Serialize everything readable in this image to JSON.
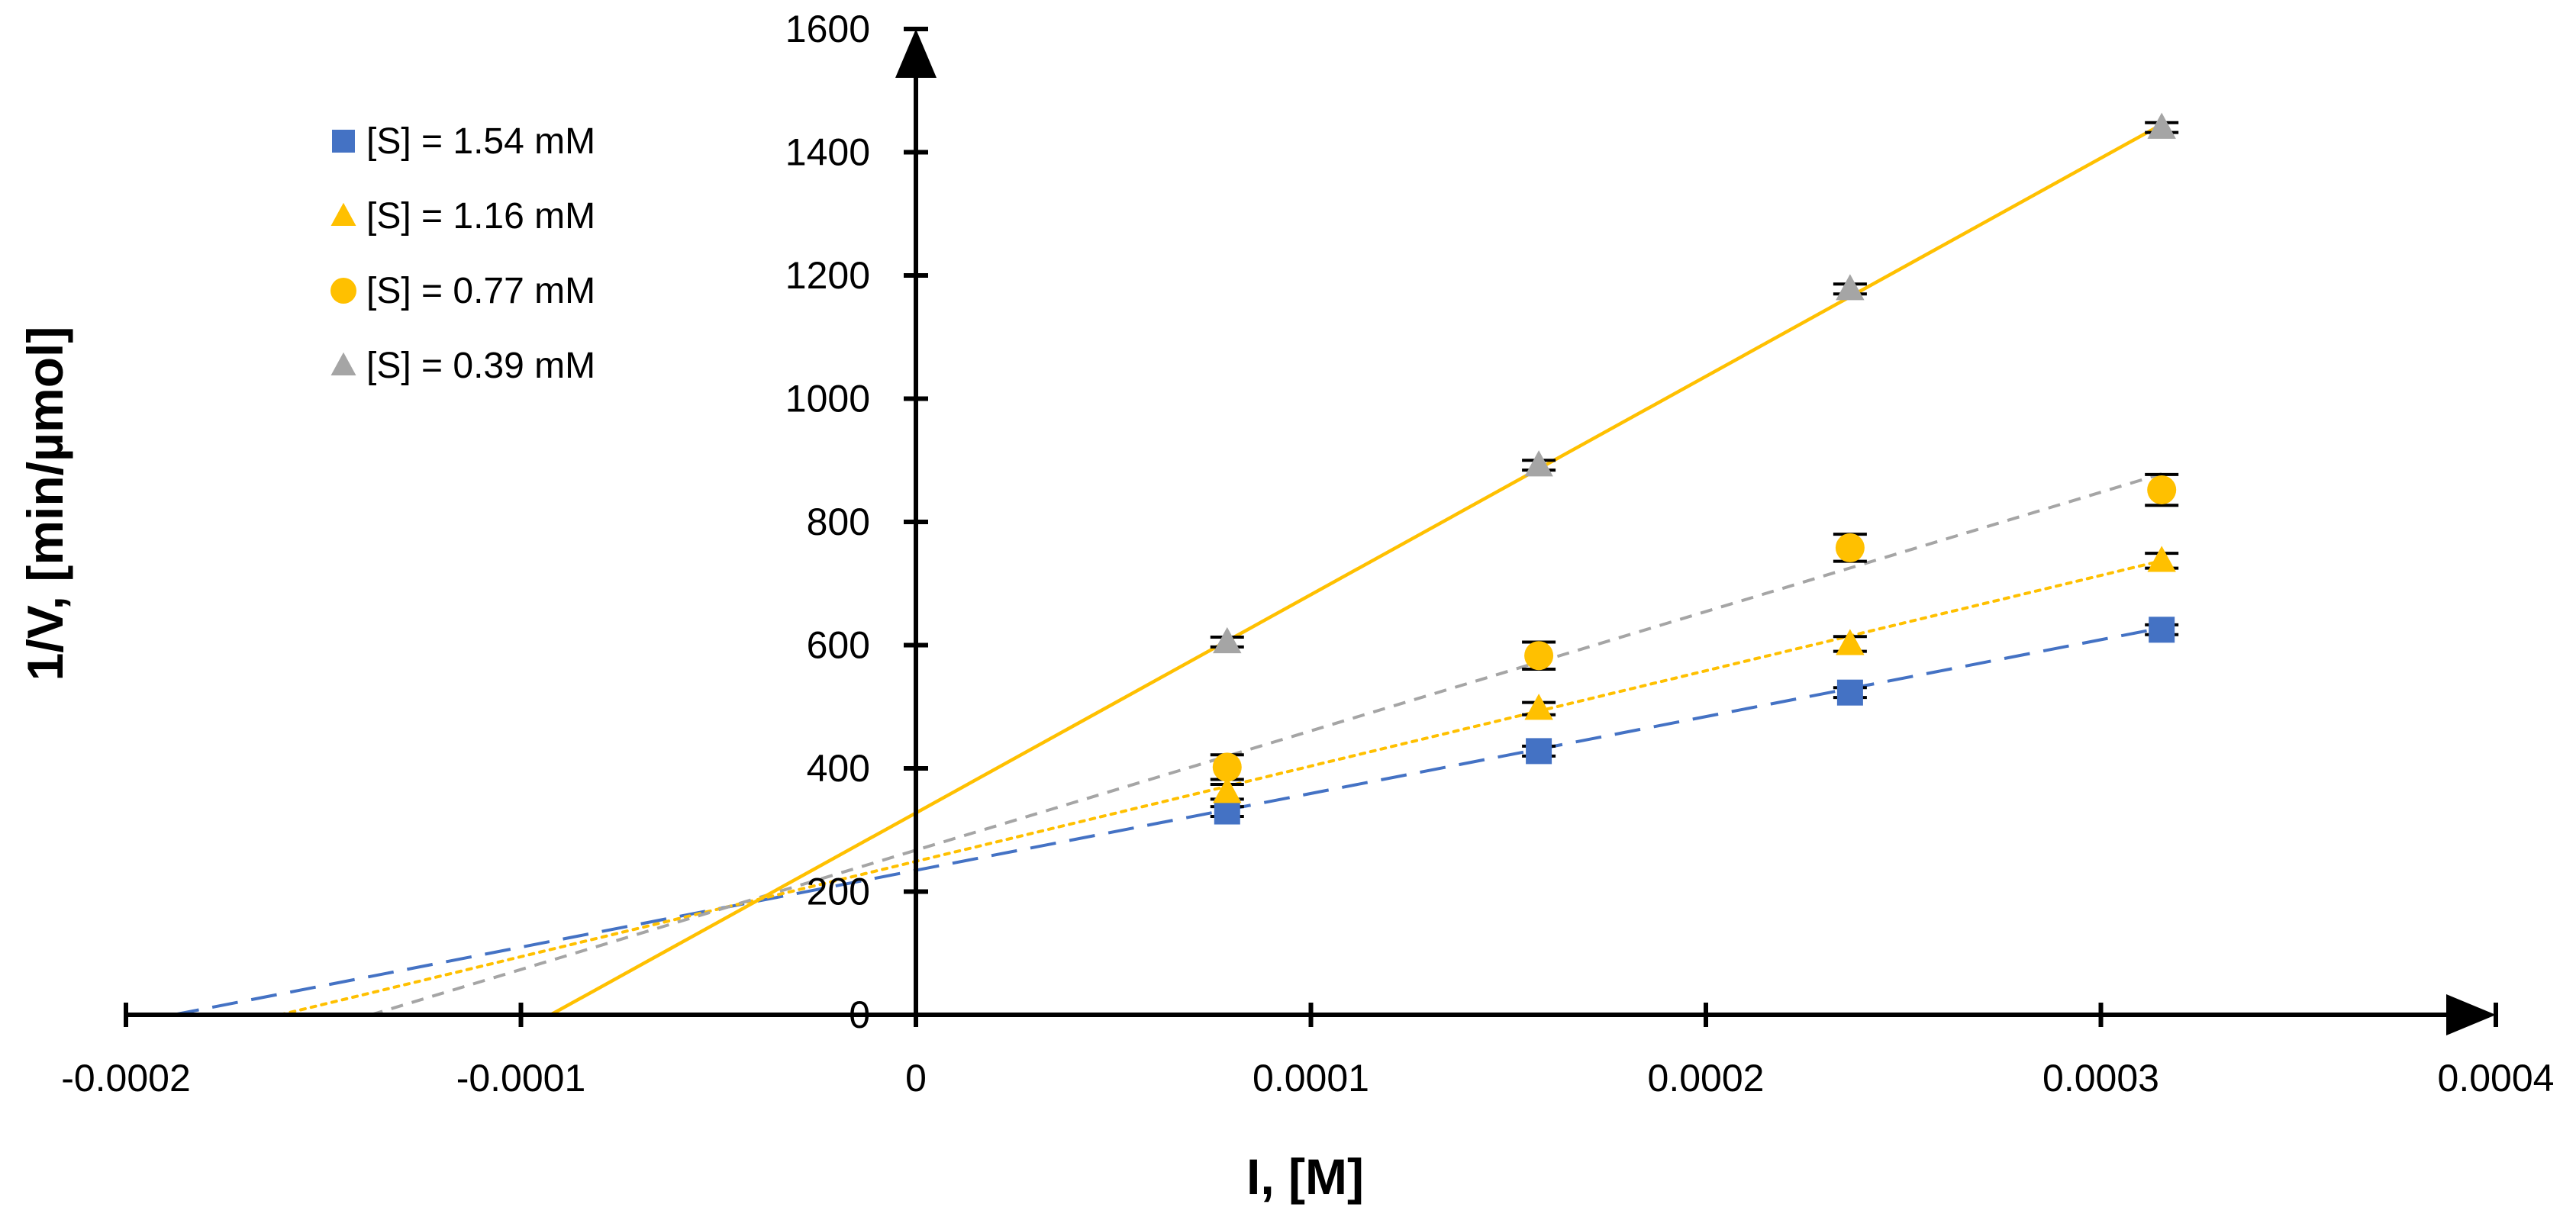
{
  "chart_data": {
    "type": "scatter",
    "title": "",
    "xlabel": "I, [M]",
    "ylabel": "1/V, [min/µmol]",
    "xlim": [
      -0.0002,
      0.0004
    ],
    "ylim": [
      0,
      1600
    ],
    "x_ticks": [
      -0.0002,
      -0.0001,
      0,
      0.0001,
      0.0002,
      0.0003,
      0.0004
    ],
    "x_tick_labels": [
      "-0.0002",
      "-0.0001",
      "0",
      "0.0001",
      "0.0002",
      "0.0003",
      "0.0004"
    ],
    "y_ticks": [
      0,
      200,
      400,
      600,
      800,
      1000,
      1200,
      1400,
      1600
    ],
    "y_tick_labels": [
      "0",
      "200",
      "400",
      "600",
      "800",
      "1000",
      "1200",
      "1400",
      "1600"
    ],
    "legend_position": "top-left",
    "x": [
      7.88e-05,
      0.0001577,
      0.0002365,
      0.0003154
    ],
    "series": [
      {
        "name": "[S] = 1.54 mM",
        "marker": "square",
        "color": "#4472C4",
        "line_style": "long-dash",
        "line_color": "#4472C4",
        "values": [
          330,
          428,
          523,
          625
        ],
        "errors": [
          8,
          8,
          8,
          8
        ],
        "fit_line": {
          "x": [
            -0.000188,
            0.0003154
          ],
          "y": [
            0,
            628
          ]
        }
      },
      {
        "name": "[S] = 1.16 mM",
        "marker": "triangle",
        "color": "#FFC000",
        "line_style": "dotted",
        "line_color": "#FFC000",
        "values": [
          362,
          497,
          602,
          737
        ],
        "errors": [
          12,
          10,
          12,
          12
        ],
        "fit_line": {
          "x": [
            -0.000161,
            0.0003154
          ],
          "y": [
            0,
            737
          ]
        }
      },
      {
        "name": "[S] = 0.77 mM",
        "marker": "circle",
        "color": "#FFC000",
        "line_style": "dashed",
        "line_color": "#A5A5A5",
        "values": [
          402,
          583,
          758,
          852
        ],
        "errors": [
          20,
          22,
          22,
          25
        ],
        "fit_line": {
          "x": [
            -0.000138,
            0.0003154
          ],
          "y": [
            0,
            878
          ]
        }
      },
      {
        "name": "[S] = 0.39 mM",
        "marker": "triangle",
        "color": "#A5A5A5",
        "line_style": "solid",
        "line_color": "#FFC000",
        "values": [
          605,
          892,
          1178,
          1440
        ],
        "errors": [
          8,
          8,
          8,
          8
        ],
        "fit_line": {
          "x": [
            -9.25e-05,
            0.0003154
          ],
          "y": [
            0,
            1445
          ]
        }
      }
    ]
  }
}
